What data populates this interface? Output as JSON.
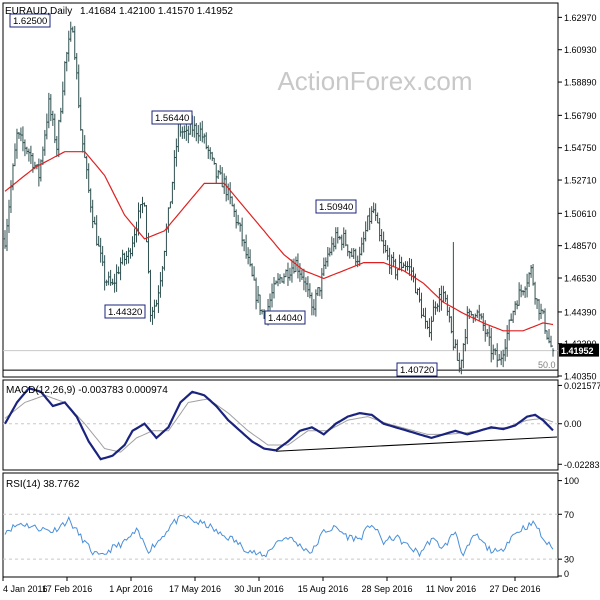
{
  "header": {
    "symbol": "EURAUD,Daily",
    "ohlc": "1.41684 1.42100 1.41570 1.41952"
  },
  "watermark": "ActionForex.com",
  "colors": {
    "price_bars": "#2f4f4f",
    "moving_average": "#e02020",
    "macd_line": "#1a237e",
    "macd_signal": "#a0a0a0",
    "rsi_line": "#4a90d9",
    "trendline": "#000000",
    "grid": "#c8c8c8",
    "label_border": "#1a237e"
  },
  "x_axis": {
    "ticks": [
      "4 Jan 2016",
      "17 Feb 2016",
      "1 Apr 2016",
      "17 May 2016",
      "30 Jun 2016",
      "15 Aug 2016",
      "28 Sep 2016",
      "11 Nov 2016",
      "27 Dec 2016"
    ]
  },
  "chart_data": [
    {
      "type": "ohlc",
      "panel": "price",
      "ylim": [
        1.4035,
        1.6375
      ],
      "y_ticks": [
        "1.62970",
        "1.60930",
        "1.58890",
        "1.56790",
        "1.54750",
        "1.52710",
        "1.50610",
        "1.48570",
        "1.46530",
        "1.44390",
        "1.42390",
        "1.40350"
      ],
      "current_price": "1.41952",
      "fib_label": "50.0",
      "annotations": [
        {
          "label": "1.62500",
          "x": "Feb 2016",
          "y": 1.625
        },
        {
          "label": "1.56440",
          "x": "Apr 2016",
          "y": 1.5644
        },
        {
          "label": "1.50940",
          "x": "Sep 2016",
          "y": 1.5094
        },
        {
          "label": "1.44320",
          "x": "Mar 2016",
          "y": 1.4432
        },
        {
          "label": "1.44040",
          "x": "Jul 2016",
          "y": 1.4404
        },
        {
          "label": "1.40720",
          "x": "Oct 2016",
          "y": 1.4072
        }
      ],
      "close_anchors": [
        [
          0,
          1.49
        ],
        [
          6,
          1.555
        ],
        [
          12,
          1.545
        ],
        [
          17,
          1.53
        ],
        [
          22,
          1.575
        ],
        [
          26,
          1.548
        ],
        [
          30,
          1.6
        ],
        [
          34,
          1.625
        ],
        [
          38,
          1.56
        ],
        [
          42,
          1.52
        ],
        [
          46,
          1.49
        ],
        [
          50,
          1.465
        ],
        [
          54,
          1.46
        ],
        [
          58,
          1.475
        ],
        [
          62,
          1.48
        ],
        [
          66,
          1.5
        ],
        [
          70,
          1.515
        ],
        [
          73,
          1.445
        ],
        [
          76,
          1.45
        ],
        [
          79,
          1.475
        ],
        [
          83,
          1.515
        ],
        [
          87,
          1.56
        ],
        [
          91,
          1.555
        ],
        [
          94,
          1.56
        ],
        [
          98,
          1.558
        ],
        [
          102,
          1.545
        ],
        [
          106,
          1.53
        ],
        [
          110,
          1.525
        ],
        [
          114,
          1.51
        ],
        [
          118,
          1.495
        ],
        [
          122,
          1.475
        ],
        [
          126,
          1.455
        ],
        [
          130,
          1.44
        ],
        [
          134,
          1.455
        ],
        [
          138,
          1.465
        ],
        [
          142,
          1.47
        ],
        [
          146,
          1.475
        ],
        [
          150,
          1.465
        ],
        [
          154,
          1.445
        ],
        [
          158,
          1.46
        ],
        [
          162,
          1.48
        ],
        [
          166,
          1.49
        ],
        [
          170,
          1.49
        ],
        [
          174,
          1.48
        ],
        [
          178,
          1.478
        ],
        [
          182,
          1.5
        ],
        [
          185,
          1.508
        ],
        [
          188,
          1.49
        ],
        [
          192,
          1.478
        ],
        [
          196,
          1.47
        ],
        [
          200,
          1.475
        ],
        [
          204,
          1.47
        ],
        [
          208,
          1.45
        ],
        [
          212,
          1.43
        ],
        [
          216,
          1.45
        ],
        [
          220,
          1.455
        ],
        [
          224,
          1.43
        ],
        [
          228,
          1.408
        ],
        [
          232,
          1.44
        ],
        [
          236,
          1.445
        ],
        [
          240,
          1.435
        ],
        [
          244,
          1.42
        ],
        [
          248,
          1.412
        ],
        [
          252,
          1.43
        ],
        [
          256,
          1.45
        ],
        [
          260,
          1.46
        ],
        [
          264,
          1.47
        ],
        [
          267,
          1.45
        ],
        [
          270,
          1.44
        ],
        [
          273,
          1.425
        ],
        [
          275,
          1.4195
        ]
      ],
      "spike": {
        "bar": 225,
        "high": 1.488
      },
      "ma_anchors": [
        [
          0,
          1.52
        ],
        [
          15,
          1.535
        ],
        [
          30,
          1.545
        ],
        [
          40,
          1.545
        ],
        [
          50,
          1.53
        ],
        [
          60,
          1.505
        ],
        [
          70,
          1.49
        ],
        [
          80,
          1.495
        ],
        [
          90,
          1.51
        ],
        [
          100,
          1.525
        ],
        [
          110,
          1.525
        ],
        [
          120,
          1.51
        ],
        [
          130,
          1.495
        ],
        [
          140,
          1.48
        ],
        [
          150,
          1.47
        ],
        [
          160,
          1.465
        ],
        [
          170,
          1.47
        ],
        [
          180,
          1.475
        ],
        [
          190,
          1.475
        ],
        [
          200,
          1.47
        ],
        [
          210,
          1.462
        ],
        [
          220,
          1.45
        ],
        [
          230,
          1.443
        ],
        [
          240,
          1.437
        ],
        [
          250,
          1.432
        ],
        [
          260,
          1.432
        ],
        [
          270,
          1.437
        ],
        [
          275,
          1.436
        ]
      ]
    },
    {
      "type": "line",
      "panel": "macd",
      "title": "MACD(12,26,9) -0.003783 0.000974",
      "ylim": [
        -0.0255,
        0.0235
      ],
      "y_ticks": [
        "0.021577",
        "0.00",
        "-0.022833"
      ],
      "series": [
        {
          "name": "MACD",
          "anchors": [
            [
              0,
              0.0
            ],
            [
              6,
              0.012
            ],
            [
              12,
              0.02
            ],
            [
              18,
              0.018
            ],
            [
              24,
              0.01
            ],
            [
              30,
              0.012
            ],
            [
              36,
              0.004
            ],
            [
              42,
              -0.01
            ],
            [
              48,
              -0.02
            ],
            [
              54,
              -0.018
            ],
            [
              60,
              -0.012
            ],
            [
              64,
              -0.004
            ],
            [
              70,
              0.0
            ],
            [
              76,
              -0.008
            ],
            [
              82,
              -0.002
            ],
            [
              88,
              0.012
            ],
            [
              94,
              0.018
            ],
            [
              100,
              0.016
            ],
            [
              106,
              0.01
            ],
            [
              112,
              0.002
            ],
            [
              118,
              -0.004
            ],
            [
              124,
              -0.01
            ],
            [
              130,
              -0.014
            ],
            [
              136,
              -0.015
            ],
            [
              142,
              -0.01
            ],
            [
              148,
              -0.004
            ],
            [
              154,
              -0.002
            ],
            [
              160,
              -0.006
            ],
            [
              166,
              0.0
            ],
            [
              172,
              0.004
            ],
            [
              178,
              0.006
            ],
            [
              184,
              0.005
            ],
            [
              190,
              0.0
            ],
            [
              196,
              -0.002
            ],
            [
              202,
              -0.004
            ],
            [
              208,
              -0.006
            ],
            [
              214,
              -0.008
            ],
            [
              220,
              -0.006
            ],
            [
              226,
              -0.004
            ],
            [
              232,
              -0.006
            ],
            [
              238,
              -0.004
            ],
            [
              244,
              -0.002
            ],
            [
              250,
              -0.003
            ],
            [
              256,
              -0.001
            ],
            [
              262,
              0.004
            ],
            [
              266,
              0.005
            ],
            [
              270,
              0.002
            ],
            [
              275,
              -0.003783
            ]
          ]
        },
        {
          "name": "Signal",
          "anchors": [
            [
              0,
              0.003
            ],
            [
              10,
              0.012
            ],
            [
              20,
              0.016
            ],
            [
              30,
              0.012
            ],
            [
              40,
              0.0
            ],
            [
              50,
              -0.014
            ],
            [
              58,
              -0.016
            ],
            [
              66,
              -0.008
            ],
            [
              74,
              -0.004
            ],
            [
              82,
              -0.004
            ],
            [
              92,
              0.012
            ],
            [
              102,
              0.014
            ],
            [
              112,
              0.006
            ],
            [
              122,
              -0.004
            ],
            [
              132,
              -0.012
            ],
            [
              142,
              -0.012
            ],
            [
              152,
              -0.004
            ],
            [
              162,
              -0.004
            ],
            [
              172,
              0.002
            ],
            [
              182,
              0.004
            ],
            [
              192,
              0.0
            ],
            [
              202,
              -0.003
            ],
            [
              212,
              -0.006
            ],
            [
              222,
              -0.006
            ],
            [
              232,
              -0.005
            ],
            [
              242,
              -0.003
            ],
            [
              252,
              -0.002
            ],
            [
              262,
              0.002
            ],
            [
              270,
              0.003
            ],
            [
              275,
              0.000974
            ]
          ]
        },
        {
          "name": "Trendline",
          "anchors": [
            [
              136,
              -0.0155
            ],
            [
              275,
              -0.0075
            ]
          ]
        }
      ]
    },
    {
      "type": "line",
      "panel": "rsi",
      "title": "RSI(14) 38.7762",
      "ylim": [
        15,
        105
      ],
      "y_ticks": [
        "100",
        "70",
        "30",
        "0"
      ],
      "levels": [
        70,
        30
      ],
      "series": [
        {
          "name": "RSI(14)",
          "anchors": [
            [
              0,
              55
            ],
            [
              8,
              62
            ],
            [
              16,
              58
            ],
            [
              24,
              55
            ],
            [
              32,
              65
            ],
            [
              38,
              50
            ],
            [
              44,
              36
            ],
            [
              48,
              32
            ],
            [
              54,
              40
            ],
            [
              60,
              45
            ],
            [
              66,
              55
            ],
            [
              72,
              38
            ],
            [
              78,
              48
            ],
            [
              84,
              62
            ],
            [
              90,
              68
            ],
            [
              96,
              63
            ],
            [
              102,
              60
            ],
            [
              108,
              52
            ],
            [
              114,
              48
            ],
            [
              120,
              40
            ],
            [
              126,
              35
            ],
            [
              130,
              32
            ],
            [
              136,
              45
            ],
            [
              142,
              50
            ],
            [
              148,
              42
            ],
            [
              154,
              36
            ],
            [
              160,
              55
            ],
            [
              166,
              58
            ],
            [
              172,
              50
            ],
            [
              178,
              48
            ],
            [
              184,
              62
            ],
            [
              190,
              45
            ],
            [
              196,
              50
            ],
            [
              202,
              42
            ],
            [
              208,
              35
            ],
            [
              214,
              48
            ],
            [
              220,
              40
            ],
            [
              226,
              55
            ],
            [
              230,
              33
            ],
            [
              236,
              52
            ],
            [
              242,
              40
            ],
            [
              248,
              35
            ],
            [
              254,
              50
            ],
            [
              260,
              58
            ],
            [
              266,
              62
            ],
            [
              270,
              48
            ],
            [
              275,
              38.7762
            ]
          ]
        }
      ]
    }
  ]
}
